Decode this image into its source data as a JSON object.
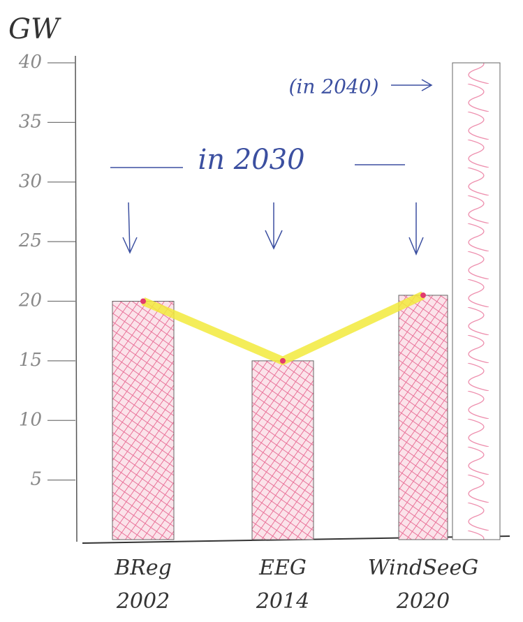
{
  "chart_data": {
    "type": "bar",
    "y_label": "GW",
    "categories": [
      "BReg\n2002",
      "EEG\n2014",
      "WindSeeG\n2020",
      null
    ],
    "values": [
      20,
      15,
      20.5,
      40
    ],
    "color": "#e23a6e",
    "line_values": [
      20,
      15,
      20.5,
      null
    ],
    "line_color": "#f2ea3c",
    "ylim": [
      0,
      40
    ],
    "yticks": [
      5,
      10,
      15,
      20,
      25,
      30,
      35,
      40
    ],
    "annotations": [
      "in 2030",
      "(in 2040)"
    ]
  }
}
